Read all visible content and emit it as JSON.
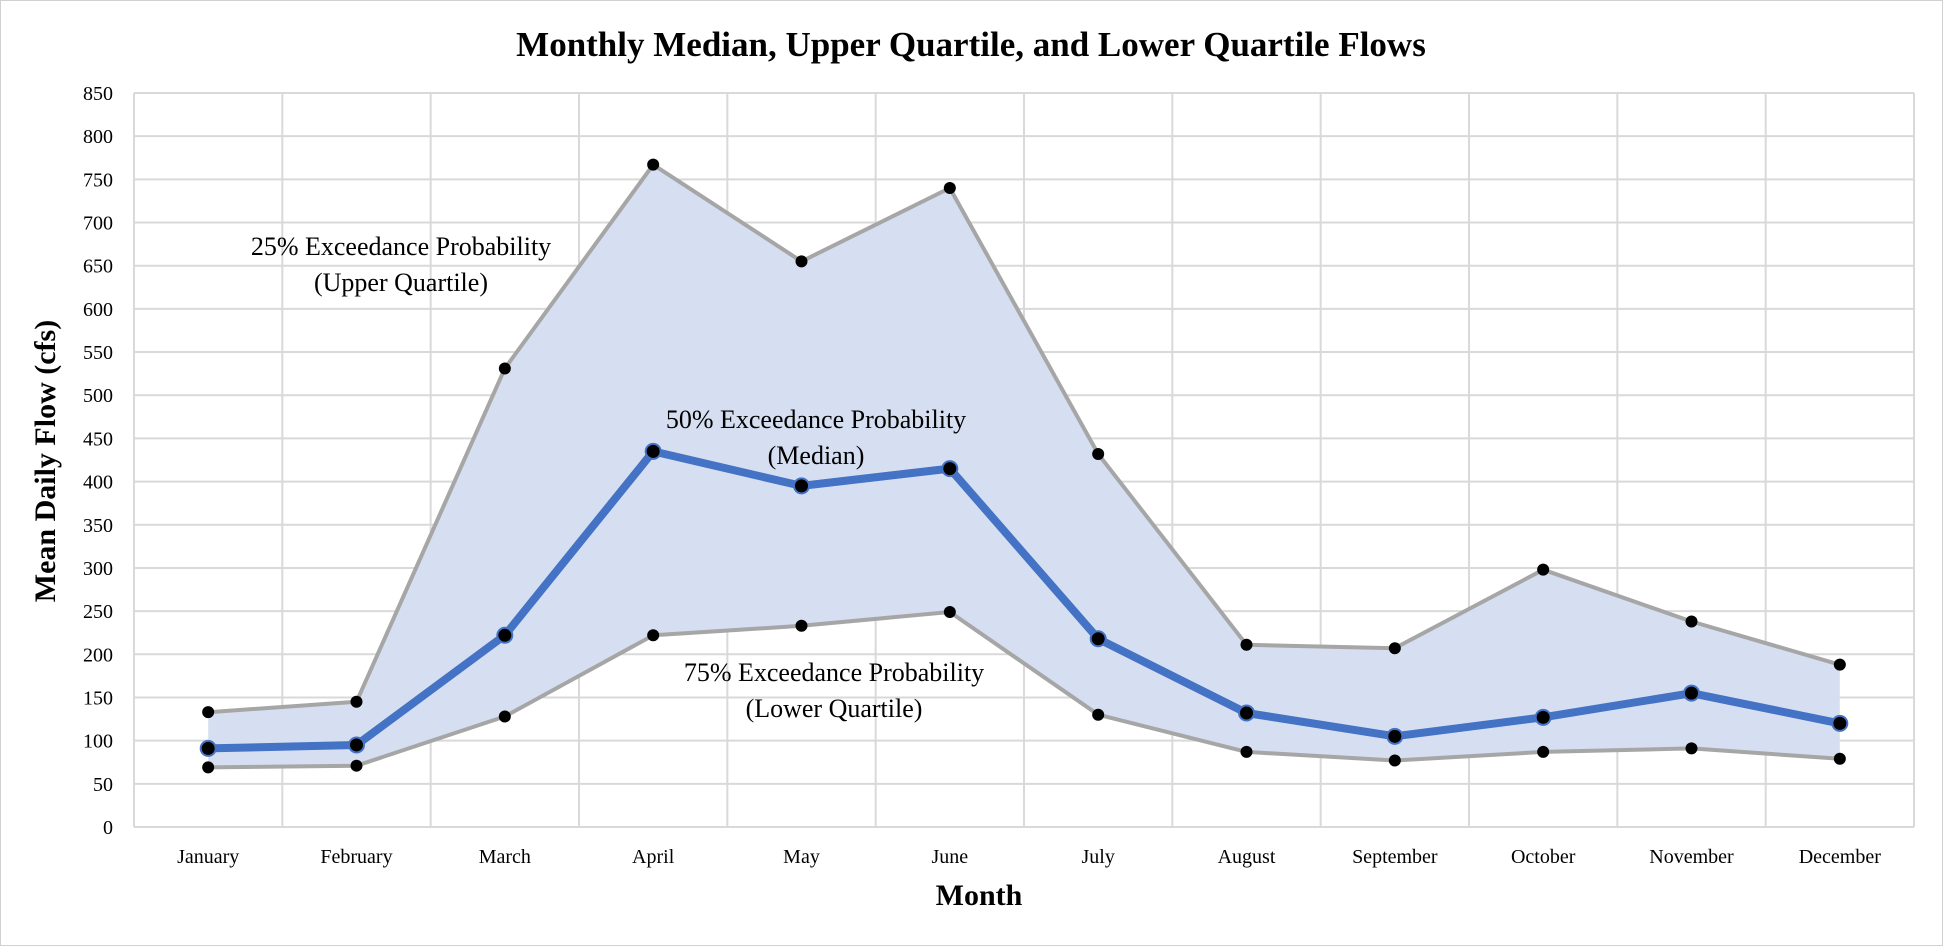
{
  "chart_data": {
    "type": "area",
    "title": "Monthly Median, Upper Quartile, and Lower Quartile Flows",
    "xlabel": "Month",
    "ylabel": "Mean Daily Flow (cfs)",
    "categories": [
      "January",
      "February",
      "March",
      "April",
      "May",
      "June",
      "July",
      "August",
      "September",
      "October",
      "November",
      "December"
    ],
    "ylim": [
      0,
      850
    ],
    "yticks": [
      0,
      50,
      100,
      150,
      200,
      250,
      300,
      350,
      400,
      450,
      500,
      550,
      600,
      650,
      700,
      750,
      800,
      850
    ],
    "grid": true,
    "series": [
      {
        "name": "25% Exceedance Probability (Upper Quartile)",
        "values": [
          133,
          145,
          531,
          767,
          655,
          740,
          432,
          211,
          207,
          298,
          238,
          188
        ]
      },
      {
        "name": "50% Exceedance Probability (Median)",
        "values": [
          91,
          95,
          222,
          435,
          395,
          415,
          218,
          132,
          105,
          127,
          155,
          120
        ]
      },
      {
        "name": "75% Exceedance Probability (Lower Quartile)",
        "values": [
          69,
          71,
          128,
          222,
          233,
          249,
          130,
          87,
          77,
          87,
          91,
          79
        ]
      }
    ],
    "annotations": [
      {
        "lines": [
          "25% Exceedance Probability",
          "(Upper Quartile)"
        ]
      },
      {
        "lines": [
          "50% Exceedance Probability",
          "(Median)"
        ]
      },
      {
        "lines": [
          "75% Exceedance Probability",
          "(Lower Quartile)"
        ]
      }
    ],
    "colors": {
      "band_fill": "#d6dff1",
      "quartile_line": "#a6a6a6",
      "median_line": "#4472c4",
      "marker": "#000000",
      "grid": "#d9d9d9"
    }
  }
}
